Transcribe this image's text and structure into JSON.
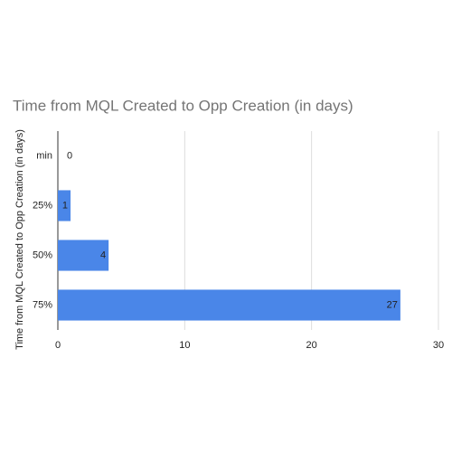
{
  "chart_data": {
    "type": "bar",
    "orientation": "horizontal",
    "title": "Time from MQL Created to Opp Creation (in days)",
    "y_label": "Time from MQL Created to Opp Creation (in days)",
    "categories": [
      "min",
      "25%",
      "50%",
      "75%"
    ],
    "values": [
      0,
      1,
      4,
      27
    ],
    "color": "#4a86e8",
    "xlim": [
      0,
      30
    ],
    "xticks": [
      0,
      10,
      20,
      30
    ],
    "grid": true
  }
}
